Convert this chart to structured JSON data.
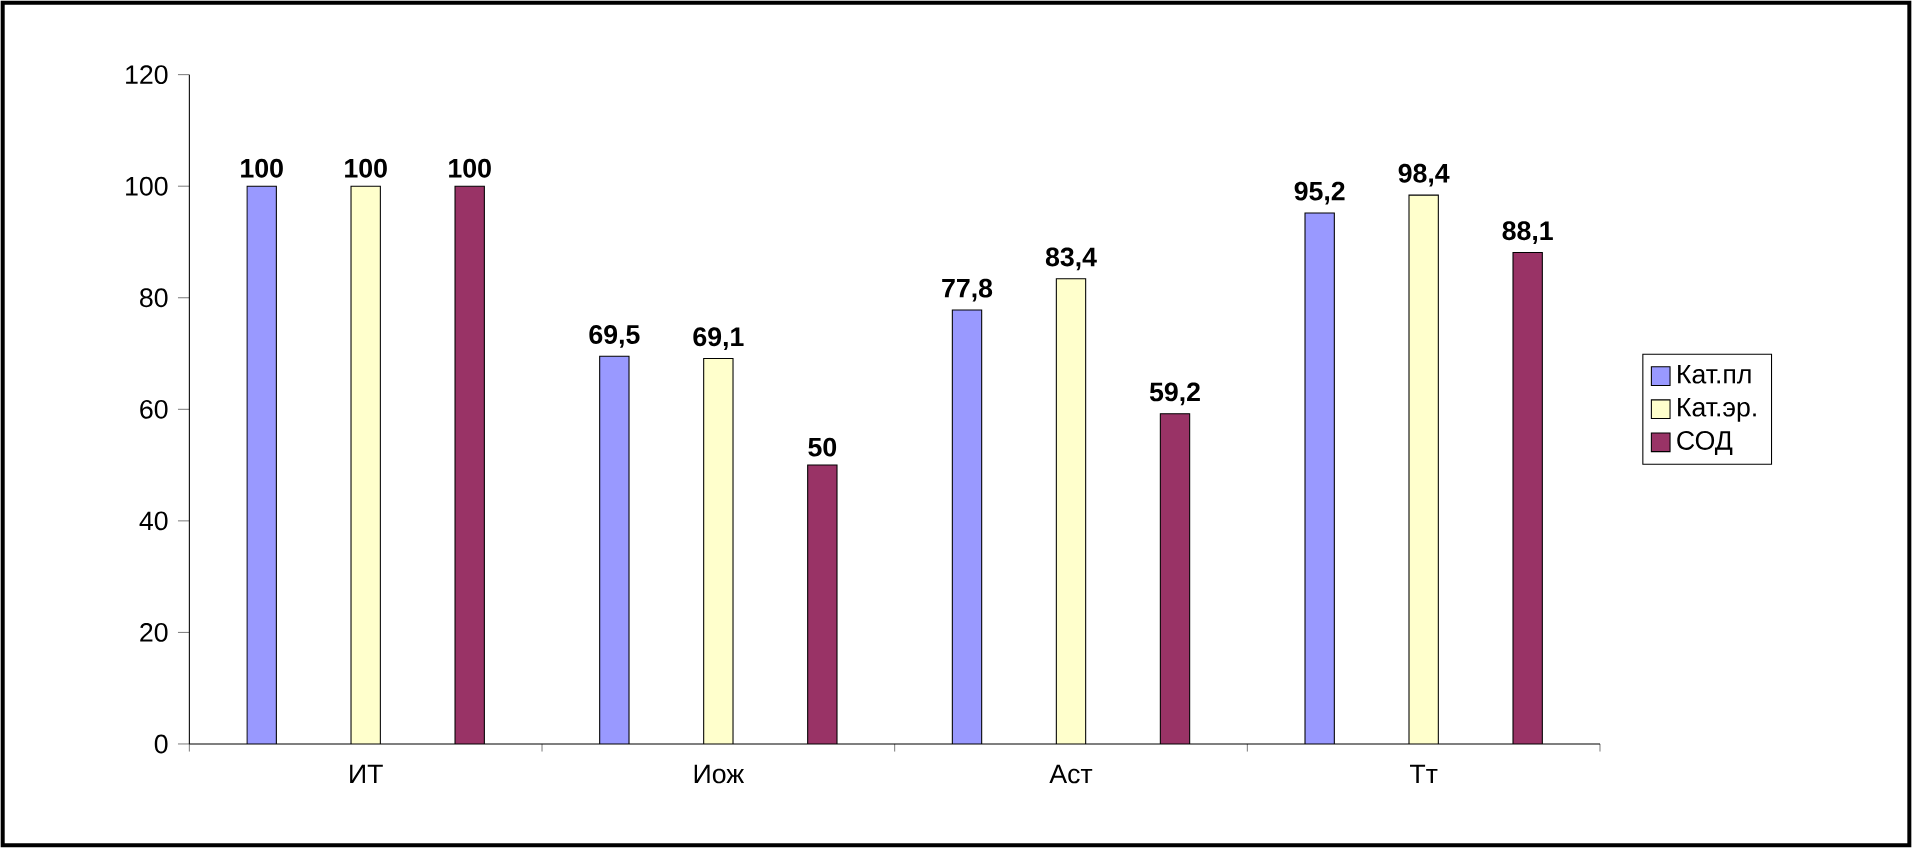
{
  "chart_data": {
    "type": "bar",
    "categories": [
      "ИТ",
      "Иож",
      "Аст",
      "Тт"
    ],
    "series": [
      {
        "name": "Кат.пл",
        "color": "#9999ff",
        "values": [
          100,
          69.5,
          77.8,
          95.2
        ],
        "value_labels": [
          "100",
          "69,5",
          "77,8",
          "95,2"
        ]
      },
      {
        "name": "Кат.эр.",
        "color": "#ffffcc",
        "values": [
          100,
          69.1,
          83.4,
          98.4
        ],
        "value_labels": [
          "100",
          "69,1",
          "83,4",
          "98,4"
        ]
      },
      {
        "name": "СОД",
        "color": "#993366",
        "values": [
          100,
          50,
          59.2,
          88.1
        ],
        "value_labels": [
          "100",
          "50",
          "59,2",
          "88,1"
        ]
      }
    ],
    "ylim": [
      0,
      120
    ],
    "yticks": [
      0,
      20,
      40,
      60,
      80,
      100,
      120
    ],
    "grid": false,
    "legend": "right"
  }
}
